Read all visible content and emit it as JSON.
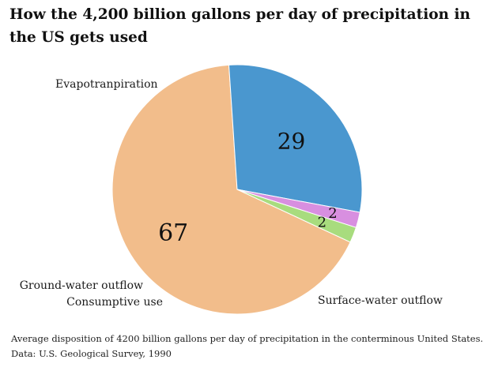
{
  "chart_data": {
    "type": "pie",
    "title": "How the 4,200 billion gallons per day of precipitation in the US gets used",
    "slices": [
      {
        "label": "Evapotranpiration",
        "value": 67,
        "value_label": "67",
        "color": "#F2BD8B"
      },
      {
        "label": "Surface-water outflow",
        "value": 29,
        "value_label": "29",
        "color": "#4A97CF"
      },
      {
        "label": "Consumptive use",
        "value": 2,
        "value_label": "2",
        "color": "#D88FE0"
      },
      {
        "label": "Ground-water outflow",
        "value": 2,
        "value_label": "2",
        "color": "#A8DC7E"
      }
    ],
    "caption": "Average disposition of 4200 billion gallons per day of precipitation in the conterminous United States.",
    "source": "Data: U.S. Geological Survey, 1990"
  }
}
